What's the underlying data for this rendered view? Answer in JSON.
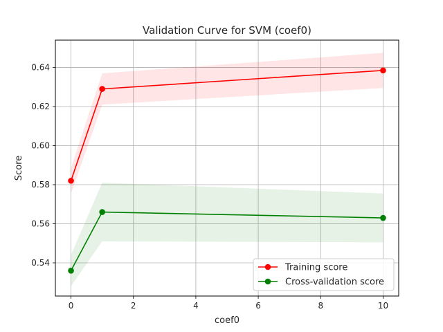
{
  "chart_data": {
    "type": "line",
    "title": "Validation Curve for SVM (coef0)",
    "xlabel": "coef0",
    "ylabel": "Score",
    "xlim": [
      -0.5,
      10.5
    ],
    "ylim": [
      0.523,
      0.654
    ],
    "xticks": [
      0,
      2,
      4,
      6,
      8,
      10
    ],
    "yticks": [
      0.54,
      0.56,
      0.58,
      0.6,
      0.62,
      0.64
    ],
    "ytick_labels": [
      "0.54",
      "0.56",
      "0.58",
      "0.60",
      "0.62",
      "0.64"
    ],
    "grid": true,
    "legend_position": "lower-right",
    "x": [
      0,
      1,
      10
    ],
    "series": [
      {
        "name": "Training score",
        "color": "#ff0000",
        "band_color": "#ff0000",
        "values": [
          0.582,
          0.629,
          0.6385
        ],
        "lower": [
          0.5755,
          0.621,
          0.6295
        ],
        "upper": [
          0.5885,
          0.637,
          0.6475
        ]
      },
      {
        "name": "Cross-validation score",
        "color": "#008000",
        "band_color": "#008000",
        "values": [
          0.536,
          0.566,
          0.563
        ],
        "lower": [
          0.528,
          0.551,
          0.5505
        ],
        "upper": [
          0.544,
          0.581,
          0.5755
        ]
      }
    ]
  }
}
